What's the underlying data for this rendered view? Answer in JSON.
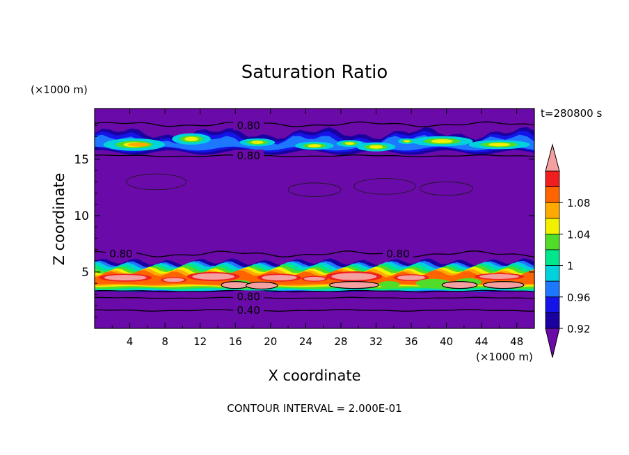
{
  "chart_data": {
    "type": "heatmap",
    "title": "Saturation Ratio",
    "xlabel": "X coordinate",
    "ylabel": "Z coordinate",
    "x_unit": "(×1000 m)",
    "y_unit": "(×1000 m)",
    "time_label": "t=280800 s",
    "footer": "CONTOUR INTERVAL = 2.000E-01",
    "xlim": [
      0,
      50
    ],
    "ylim": [
      0,
      19.5
    ],
    "x_ticks": [
      4,
      8,
      12,
      16,
      20,
      24,
      28,
      32,
      36,
      40,
      44,
      48
    ],
    "y_ticks": [
      5,
      10,
      15
    ],
    "contour_labels": [
      {
        "text": "0.80",
        "x": 17.5,
        "z": 18.0
      },
      {
        "text": "0.80",
        "x": 17.5,
        "z": 15.3
      },
      {
        "text": "0.80",
        "x": 3.0,
        "z": 6.6
      },
      {
        "text": "0.80",
        "x": 34.5,
        "z": 6.6
      },
      {
        "text": "0.80",
        "x": 17.5,
        "z": 2.8
      },
      {
        "text": "0.40",
        "x": 17.5,
        "z": 1.6
      }
    ],
    "colorbar": {
      "levels": [
        0.92,
        0.94,
        0.96,
        0.98,
        1.0,
        1.02,
        1.04,
        1.06,
        1.08,
        1.1
      ],
      "tick_labels": [
        "0.92",
        "0.96",
        "1",
        "1.04",
        "1.08"
      ],
      "colors": [
        "#6a0aa8",
        "#1a00a0",
        "#1414e8",
        "#1e78ff",
        "#00d2dc",
        "#00e68c",
        "#50dc28",
        "#f0f000",
        "#ffaa00",
        "#ff6400",
        "#f01e1e",
        "#f5a0a0"
      ]
    }
  }
}
